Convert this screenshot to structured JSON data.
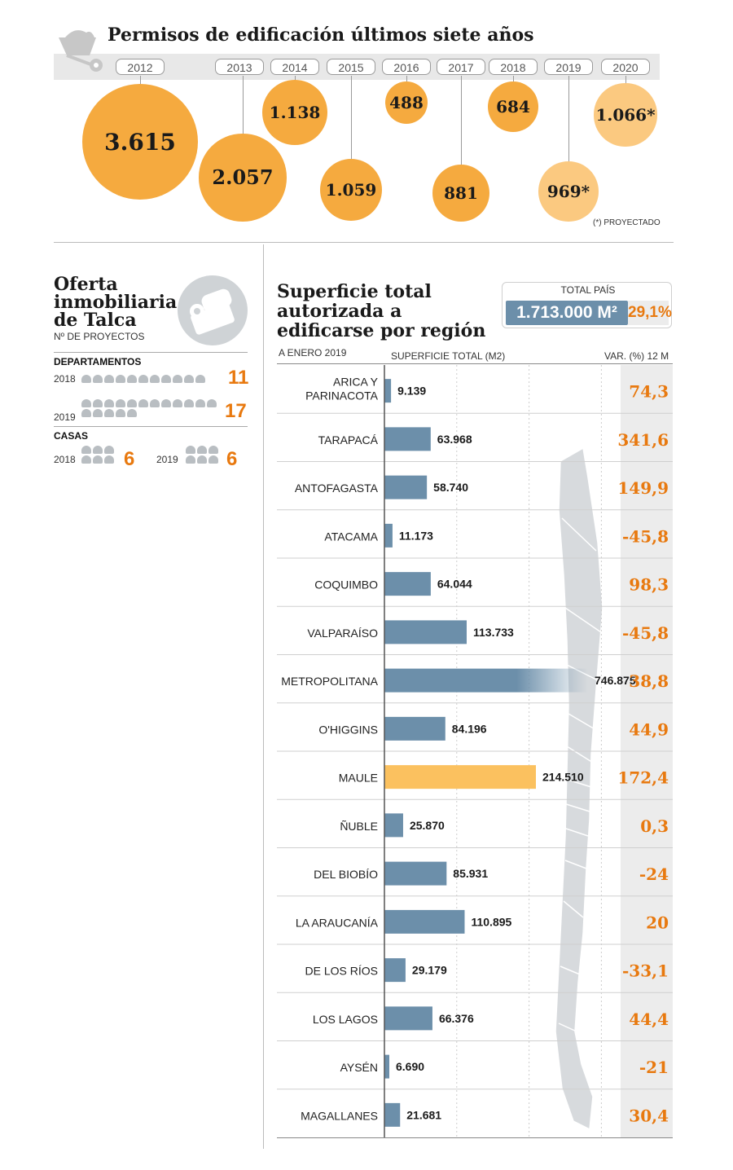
{
  "permits": {
    "title": "Permisos de edificación últimos siete años",
    "note": "(*) PROYECTADO",
    "years": [
      {
        "year": "2012",
        "label": "3.615",
        "value": 3615,
        "projected": false
      },
      {
        "year": "2013",
        "label": "2.057",
        "value": 2057,
        "projected": false
      },
      {
        "year": "2014",
        "label": "1.138",
        "value": 1138,
        "projected": false
      },
      {
        "year": "2015",
        "label": "1.059",
        "value": 1059,
        "projected": false
      },
      {
        "year": "2016",
        "label": "488",
        "value": 488,
        "projected": false
      },
      {
        "year": "2017",
        "label": "881",
        "value": 881,
        "projected": false
      },
      {
        "year": "2018",
        "label": "684",
        "value": 684,
        "projected": false
      },
      {
        "year": "2019",
        "label": "969*",
        "value": 969,
        "projected": true
      },
      {
        "year": "2020",
        "label": "1.066*",
        "value": 1066,
        "projected": true
      }
    ]
  },
  "talca": {
    "title": "Oferta inmobiliaria de Talca",
    "subtitle": "Nº DE PROYECTOS",
    "departamentos_label": "DEPARTAMENTOS",
    "casas_label": "CASAS",
    "departamentos": [
      {
        "year": "2018",
        "count": "11",
        "value": 11
      },
      {
        "year": "2019",
        "count": "17",
        "value": 17
      }
    ],
    "casas": [
      {
        "year": "2018",
        "count": "6",
        "value": 6
      },
      {
        "year": "2019",
        "count": "6",
        "value": 6
      }
    ]
  },
  "surface": {
    "title": "Superficie total autorizada a edificarse por región",
    "as_of": "A ENERO 2019",
    "total_label": "TOTAL PAÍS",
    "total_value": "1.713.000 M²",
    "total_var": "29,1%",
    "col_surface": "SUPERFICIE TOTAL (M2)",
    "col_var": "VAR. (%) 12 M"
  },
  "colors": {
    "bubble": "#f5aa3f",
    "bubble_projected": "#fbc980",
    "bar": "#6c8faa",
    "bar_highlight": "#fbc15f",
    "accent": "#e8790f"
  },
  "chart_data": [
    {
      "type": "scatter",
      "title": "Permisos de edificación últimos siete años",
      "x": [
        "2012",
        "2013",
        "2014",
        "2015",
        "2016",
        "2017",
        "2018",
        "2019",
        "2020"
      ],
      "values": [
        3615,
        2057,
        1138,
        1059,
        488,
        881,
        684,
        969,
        1066
      ],
      "projected": [
        "2019",
        "2020"
      ]
    },
    {
      "type": "bar",
      "orientation": "horizontal",
      "title": "Superficie total autorizada a edificarse por región",
      "xlabel": "SUPERFICIE TOTAL (M2)",
      "highlight": "MAULE",
      "categories": [
        "ARICA Y PARINACOTA",
        "TARAPACÁ",
        "ANTOFAGASTA",
        "ATACAMA",
        "COQUIMBO",
        "VALPARAÍSO",
        "METROPOLITANA",
        "O'HIGGINS",
        "MAULE",
        "ÑUBLE",
        "DEL BIOBÍO",
        "LA ARAUCANÍA",
        "DE LOS RÍOS",
        "LOS LAGOS",
        "AYSÉN",
        "MAGALLANES"
      ],
      "rows": [
        {
          "region": "ARICA Y PARINACOTA",
          "value": 9139,
          "label": "9.139",
          "var": "74,3"
        },
        {
          "region": "TARAPACÁ",
          "value": 63968,
          "label": "63.968",
          "var": "341,6"
        },
        {
          "region": "ANTOFAGASTA",
          "value": 58740,
          "label": "58.740",
          "var": "149,9"
        },
        {
          "region": "ATACAMA",
          "value": 11173,
          "label": "11.173",
          "var": "-45,8"
        },
        {
          "region": "COQUIMBO",
          "value": 64044,
          "label": "64.044",
          "var": "98,3"
        },
        {
          "region": "VALPARAÍSO",
          "value": 113733,
          "label": "113.733",
          "var": "-45,8"
        },
        {
          "region": "METROPOLITANA",
          "value": 746875,
          "label": "746.875",
          "var": "38,8"
        },
        {
          "region": "O'HIGGINS",
          "value": 84196,
          "label": "84.196",
          "var": "44,9"
        },
        {
          "region": "MAULE",
          "value": 214510,
          "label": "214.510",
          "var": "172,4"
        },
        {
          "region": "ÑUBLE",
          "value": 25870,
          "label": "25.870",
          "var": "0,3"
        },
        {
          "region": "DEL BIOBÍO",
          "value": 85931,
          "label": "85.931",
          "var": "-24"
        },
        {
          "region": "LA ARAUCANÍA",
          "value": 110895,
          "label": "110.895",
          "var": "20"
        },
        {
          "region": "DE LOS RÍOS",
          "value": 29179,
          "label": "29.179",
          "var": "-33,1"
        },
        {
          "region": "LOS LAGOS",
          "value": 66376,
          "label": "66.376",
          "var": "44,4"
        },
        {
          "region": "AYSÉN",
          "value": 6690,
          "label": "6.690",
          "var": "-21"
        },
        {
          "region": "MAGALLANES",
          "value": 21681,
          "label": "21.681",
          "var": "30,4"
        }
      ],
      "var_label": "VAR. (%) 12 M"
    }
  ]
}
